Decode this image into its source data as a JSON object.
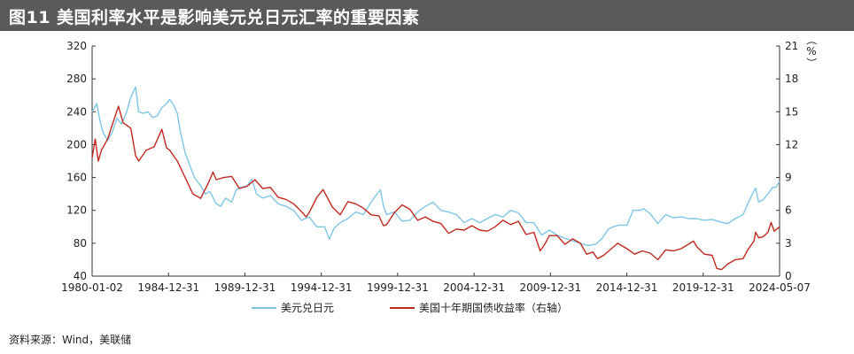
{
  "title": "图11  美国利率水平是影响美元兑日元汇率的重要因素",
  "source": "资料来源：Wind，美联储",
  "chart_data": {
    "type": "line",
    "x_ticks": [
      "1980-01-02",
      "1984-12-31",
      "1989-12-31",
      "1994-12-31",
      "1999-12-31",
      "2004-12-31",
      "2009-12-31",
      "2014-12-31",
      "2019-12-31",
      "2024-05-07"
    ],
    "y_left": {
      "ticks": [
        "40",
        "80",
        "120",
        "160",
        "200",
        "240",
        "280",
        "320"
      ],
      "lim": [
        40,
        320
      ]
    },
    "y_right": {
      "ticks": [
        "0",
        "3",
        "6",
        "9",
        "12",
        "15",
        "18",
        "21"
      ],
      "lim": [
        0,
        21
      ],
      "unit": "（%）"
    },
    "x_range": [
      1980.0,
      2024.35
    ],
    "grid": false,
    "legend_position": "bottom",
    "series": [
      {
        "name": "美元兑日元",
        "axis": "left",
        "color": "#7fc6e4",
        "x": [
          1980.0,
          1980.3,
          1980.5,
          1980.7,
          1981.0,
          1981.3,
          1981.6,
          1981.9,
          1982.2,
          1982.5,
          1982.8,
          1983.0,
          1983.3,
          1983.6,
          1983.9,
          1984.2,
          1984.5,
          1984.8,
          1985.0,
          1985.2,
          1985.5,
          1985.7,
          1986.0,
          1986.3,
          1986.6,
          1987.0,
          1987.3,
          1987.6,
          1988.0,
          1988.3,
          1988.6,
          1989.0,
          1989.3,
          1989.6,
          1990.0,
          1990.3,
          1990.6,
          1991.0,
          1991.5,
          1992.0,
          1992.5,
          1993.0,
          1993.5,
          1994.0,
          1994.5,
          1995.0,
          1995.3,
          1995.6,
          1996.0,
          1996.5,
          1997.0,
          1997.5,
          1998.0,
          1998.3,
          1998.6,
          1998.8,
          1999.0,
          1999.5,
          2000.0,
          2000.5,
          2001.0,
          2001.5,
          2002.0,
          2002.5,
          2003.0,
          2003.5,
          2004.0,
          2004.5,
          2005.0,
          2005.5,
          2006.0,
          2006.5,
          2007.0,
          2007.5,
          2008.0,
          2008.5,
          2009.0,
          2009.5,
          2010.0,
          2010.5,
          2011.0,
          2011.5,
          2012.0,
          2012.5,
          2012.9,
          2013.3,
          2013.6,
          2014.0,
          2014.5,
          2014.9,
          2015.3,
          2015.6,
          2016.0,
          2016.5,
          2017.0,
          2017.5,
          2018.0,
          2018.5,
          2019.0,
          2019.5,
          2020.0,
          2020.5,
          2021.0,
          2021.5,
          2022.0,
          2022.3,
          2022.6,
          2022.8,
          2023.0,
          2023.3,
          2023.6,
          2023.9,
          2024.1,
          2024.35
        ],
        "y": [
          240,
          250,
          230,
          215,
          205,
          215,
          232,
          225,
          238,
          258,
          270,
          240,
          238,
          240,
          233,
          235,
          245,
          250,
          255,
          250,
          238,
          215,
          190,
          175,
          160,
          150,
          140,
          143,
          128,
          125,
          135,
          130,
          145,
          148,
          150,
          158,
          140,
          135,
          138,
          128,
          125,
          120,
          108,
          112,
          100,
          100,
          85,
          98,
          105,
          110,
          118,
          115,
          130,
          138,
          145,
          125,
          115,
          118,
          107,
          108,
          118,
          125,
          130,
          120,
          118,
          115,
          105,
          110,
          105,
          110,
          115,
          112,
          120,
          117,
          105,
          105,
          90,
          96,
          90,
          86,
          83,
          80,
          77,
          79,
          86,
          97,
          100,
          102,
          102,
          120,
          120,
          122,
          116,
          104,
          115,
          111,
          112,
          110,
          110,
          108,
          109,
          106,
          104,
          110,
          115,
          128,
          140,
          147,
          130,
          133,
          140,
          148,
          148,
          155
        ]
      },
      {
        "name": "美国十年期国债收益率（右轴）",
        "axis": "right",
        "color": "#c0291f",
        "x": [
          1980.0,
          1980.2,
          1980.4,
          1980.6,
          1981.0,
          1981.3,
          1981.7,
          1982.0,
          1982.5,
          1982.8,
          1983.0,
          1983.5,
          1984.0,
          1984.5,
          1984.8,
          1985.0,
          1985.5,
          1986.0,
          1986.5,
          1987.0,
          1987.5,
          1987.8,
          1988.0,
          1988.5,
          1989.0,
          1989.5,
          1990.0,
          1990.5,
          1991.0,
          1991.5,
          1992.0,
          1992.5,
          1993.0,
          1993.5,
          1993.8,
          1994.0,
          1994.5,
          1994.9,
          1995.5,
          1996.0,
          1996.5,
          1997.0,
          1997.5,
          1998.0,
          1998.5,
          1998.8,
          1999.0,
          1999.5,
          2000.0,
          2000.5,
          2001.0,
          2001.5,
          2002.0,
          2002.5,
          2003.0,
          2003.5,
          2004.0,
          2004.5,
          2005.0,
          2005.5,
          2006.0,
          2006.5,
          2007.0,
          2007.5,
          2008.0,
          2008.5,
          2008.9,
          2009.2,
          2009.5,
          2010.0,
          2010.5,
          2011.0,
          2011.5,
          2011.9,
          2012.3,
          2012.6,
          2013.0,
          2013.5,
          2013.9,
          2014.5,
          2015.0,
          2015.5,
          2016.0,
          2016.5,
          2017.0,
          2017.5,
          2018.0,
          2018.8,
          2019.0,
          2019.5,
          2020.0,
          2020.3,
          2020.6,
          2021.0,
          2021.5,
          2022.0,
          2022.3,
          2022.7,
          2022.8,
          2023.0,
          2023.3,
          2023.6,
          2023.8,
          2024.0,
          2024.35
        ],
        "y": [
          10.8,
          12.5,
          10.5,
          11.5,
          12.5,
          13.8,
          15.5,
          14.0,
          13.5,
          11.0,
          10.5,
          11.5,
          11.8,
          13.4,
          11.7,
          11.5,
          10.5,
          9.0,
          7.5,
          7.1,
          8.5,
          9.5,
          8.8,
          9.0,
          9.1,
          8.0,
          8.2,
          8.8,
          8.0,
          8.1,
          7.2,
          7.0,
          6.6,
          5.9,
          5.4,
          5.8,
          7.2,
          7.9,
          6.3,
          5.6,
          6.8,
          6.6,
          6.2,
          5.6,
          5.5,
          4.6,
          4.7,
          5.8,
          6.5,
          6.1,
          5.1,
          5.4,
          5.0,
          4.8,
          3.9,
          4.3,
          4.2,
          4.6,
          4.2,
          4.1,
          4.5,
          5.1,
          4.7,
          5.0,
          3.8,
          4.0,
          2.3,
          2.9,
          3.7,
          3.7,
          2.9,
          3.4,
          3.0,
          2.0,
          2.2,
          1.6,
          1.9,
          2.5,
          3.0,
          2.5,
          2.0,
          2.3,
          2.1,
          1.5,
          2.4,
          2.3,
          2.5,
          3.2,
          2.7,
          2.0,
          1.9,
          0.7,
          0.6,
          1.1,
          1.5,
          1.6,
          2.4,
          3.2,
          4.0,
          3.5,
          3.6,
          4.0,
          4.9,
          4.1,
          4.5
        ]
      }
    ]
  }
}
